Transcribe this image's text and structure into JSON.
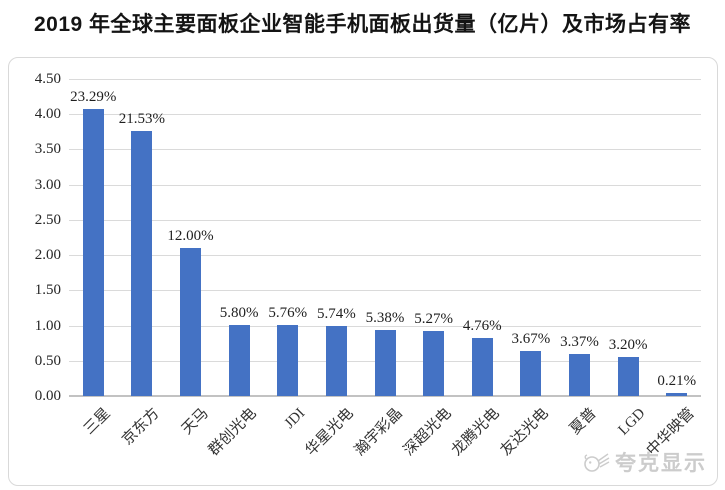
{
  "title": "2019 年全球主要面板企业智能手机面板出货量（亿片）及市场占有率",
  "watermark": {
    "text": "夸克显示",
    "icon": "quark-mascot-icon"
  },
  "colors": {
    "bar": "#4472C4",
    "gridline": "#DADADA",
    "axis_line": "#C2C2C2",
    "text": "#1F1F1F",
    "border": "#D9D9D9",
    "watermark": "#CCCCCC"
  },
  "chart_data": {
    "type": "bar",
    "title": "2019 年全球主要面板企业智能手机面板出货量（亿片）及市场占有率",
    "categories": [
      "三星",
      "京东方",
      "天马",
      "群创光电",
      "JDI",
      "华星光电",
      "瀚宇彩晶",
      "深超光电",
      "龙腾光电",
      "友达光电",
      "夏普",
      "LGD",
      "中华映管"
    ],
    "series": [
      {
        "name": "智能手机面板出货量（亿片）",
        "values": [
          4.07,
          3.76,
          2.1,
          1.01,
          1.01,
          1.0,
          0.94,
          0.92,
          0.83,
          0.64,
          0.59,
          0.56,
          0.04
        ]
      }
    ],
    "data_labels_market_share": [
      "23.29%",
      "21.53%",
      "12.00%",
      "5.80%",
      "5.76%",
      "5.74%",
      "5.38%",
      "5.27%",
      "4.76%",
      "3.67%",
      "3.37%",
      "3.20%",
      "0.21%"
    ],
    "xlabel": "",
    "ylabel": "",
    "ylim": [
      0,
      4.5
    ],
    "ytick_step": 0.5,
    "ytick_labels": [
      "0.00",
      "0.50",
      "1.00",
      "1.50",
      "2.00",
      "2.50",
      "3.00",
      "3.50",
      "4.00",
      "4.50"
    ],
    "grid": true,
    "legend": false
  }
}
